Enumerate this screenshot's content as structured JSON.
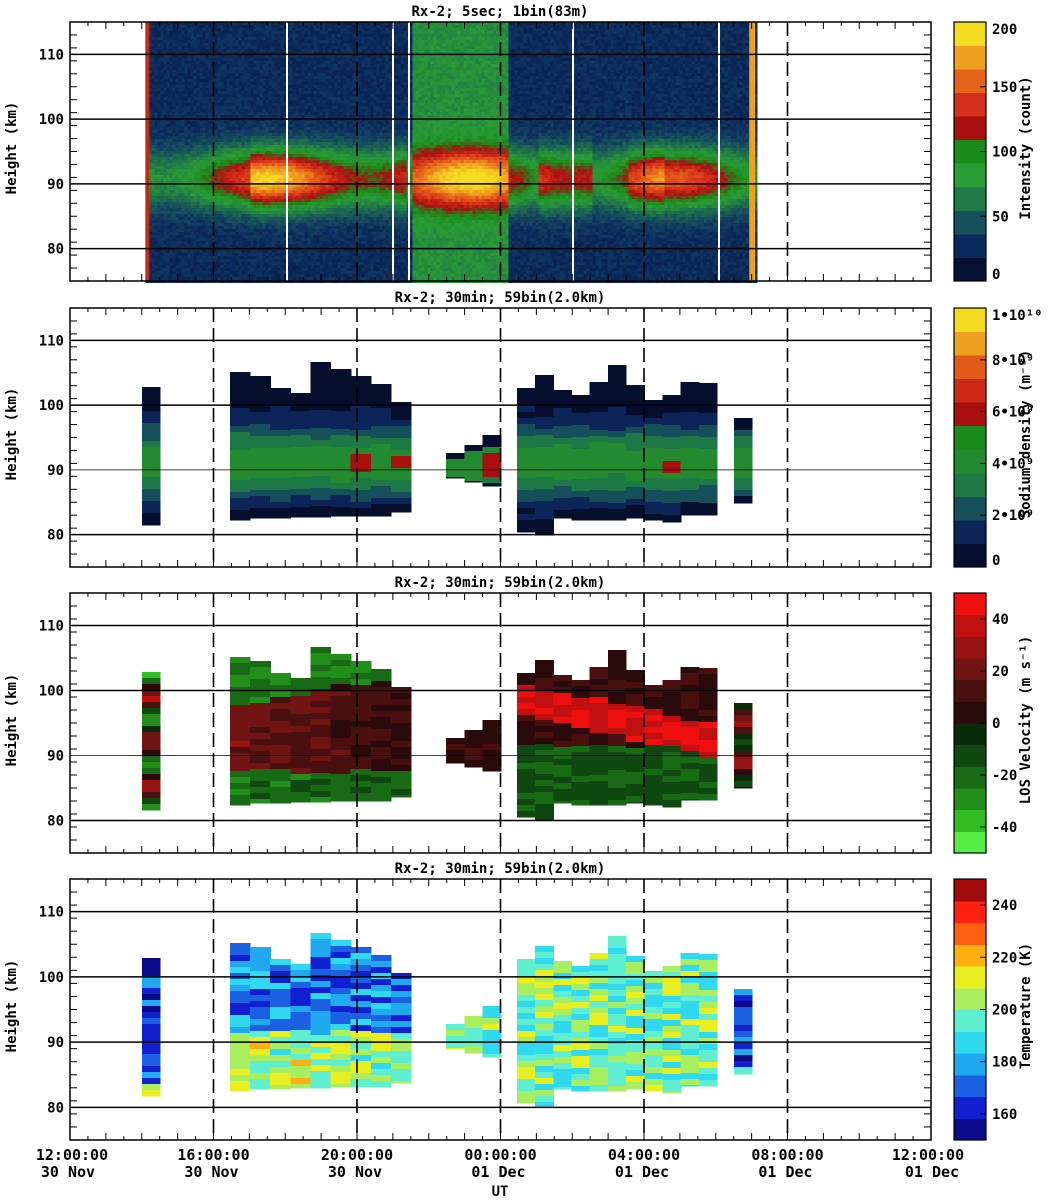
{
  "figure": {
    "xlabel": "UT",
    "x_ticks": [
      {
        "time": "12:00:00",
        "date": "30 Nov"
      },
      {
        "time": "16:00:00",
        "date": "30 Nov"
      },
      {
        "time": "20:00:00",
        "date": "30 Nov"
      },
      {
        "time": "00:00:00",
        "date": "01 Dec"
      },
      {
        "time": "04:00:00",
        "date": "01 Dec"
      },
      {
        "time": "08:00:00",
        "date": "01 Dec"
      },
      {
        "time": "12:00:00",
        "date": "01 Dec"
      }
    ],
    "y_ticks": [
      "110",
      "100",
      "90",
      "80"
    ]
  },
  "chart_data": [
    {
      "type": "heatmap",
      "title": "Rx-2;  5sec; 1bin(83m)",
      "xlabel": "UT",
      "ylabel": "Height (km)",
      "xlim_hours_ut_from_30nov_0000": [
        12,
        36
      ],
      "ylim": [
        75,
        115
      ],
      "data_coverage_hours": [
        14.1,
        31.1
      ],
      "layer_peak_height_km": 91,
      "colorbar": {
        "label": "Intensity (count)",
        "range": [
          0,
          200
        ],
        "tick_labels": [
          "0",
          "50",
          "100",
          "150",
          "200"
        ],
        "colors": [
          "#061233",
          "#0c2a5e",
          "#17505d",
          "#1f7a45",
          "#2a9c35",
          "#1a8a1a",
          "#a81010",
          "#d4301a",
          "#e6641a",
          "#f0a020",
          "#f5dc20"
        ]
      }
    },
    {
      "type": "heatmap",
      "title": "Rx-2; 30min; 59bin(2.0km)",
      "xlabel": "UT",
      "ylabel": "Height (km)",
      "ylim": [
        75,
        115
      ],
      "colorbar": {
        "label": "Sodium density (m⁻³)",
        "range": [
          0,
          10000000000
        ],
        "tick_labels": [
          "0",
          "2•10⁹",
          "4•10⁹",
          "6•10⁹",
          "8•10⁹",
          "1•10¹⁰"
        ],
        "colors": [
          "#060e2e",
          "#0c2458",
          "#15505a",
          "#1e7845",
          "#248a30",
          "#1a8a1a",
          "#a81010",
          "#cc2a18",
          "#e05a18",
          "#f0a020",
          "#f5dc20"
        ]
      }
    },
    {
      "type": "heatmap",
      "title": "Rx-2; 30min; 59bin(2.0km)",
      "xlabel": "UT",
      "ylabel": "Height (km)",
      "ylim": [
        75,
        115
      ],
      "colorbar": {
        "label": "LOS Velocity (m s⁻¹)",
        "range": [
          -50,
          50
        ],
        "tick_labels": [
          "-40",
          "-20",
          "0",
          "20",
          "40"
        ],
        "colors": [
          "#55ee44",
          "#33bb22",
          "#238e1c",
          "#186a14",
          "#0f4810",
          "#0a2a0a",
          "#2a0a0a",
          "#4a1010",
          "#701414",
          "#981414",
          "#c01010",
          "#ee1010"
        ]
      }
    },
    {
      "type": "heatmap",
      "title": "Rx-2; 30min; 59bin(2.0km)",
      "xlabel": "UT",
      "ylabel": "Height (km)",
      "ylim": [
        75,
        115
      ],
      "colorbar": {
        "label": "Temperature (K)",
        "range": [
          150,
          250
        ],
        "tick_labels": [
          "160",
          "180",
          "200",
          "220",
          "240"
        ],
        "colors": [
          "#0a0a8a",
          "#1020d0",
          "#1a60e0",
          "#20a8f0",
          "#30d8f0",
          "#60eed0",
          "#a8ee60",
          "#e8ee20",
          "#ffb010",
          "#ff6010",
          "#ff2010",
          "#a00a0a"
        ]
      }
    }
  ]
}
